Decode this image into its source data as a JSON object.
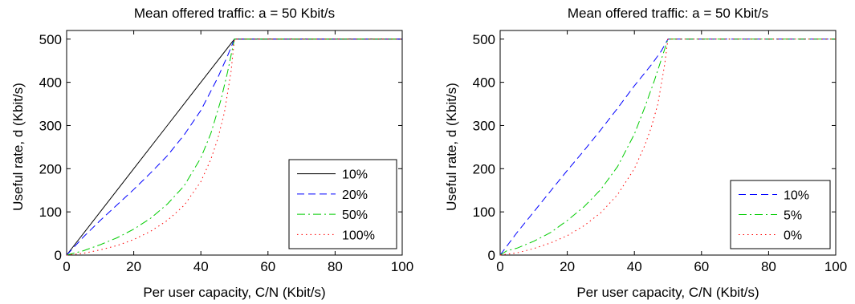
{
  "chart_data": [
    {
      "type": "line",
      "title": "Mean offered traffic: a = 50 Kbit/s",
      "xlabel": "Per user capacity, C/N (Kbit/s)",
      "ylabel": "Useful rate, d (Kbit/s)",
      "xlim": [
        0,
        100
      ],
      "ylim": [
        0,
        520
      ],
      "xticks": [
        0,
        20,
        40,
        60,
        80,
        100
      ],
      "yticks": [
        0,
        100,
        200,
        300,
        400,
        500
      ],
      "grid": false,
      "legend_position": "bottom-right",
      "series": [
        {
          "name": "10%",
          "color": "#000000",
          "dash": "solid",
          "x": [
            0,
            10,
            20,
            30,
            40,
            50,
            60,
            70,
            80,
            90,
            100
          ],
          "y": [
            0,
            100,
            200,
            300,
            400,
            500,
            500,
            500,
            500,
            500,
            500
          ]
        },
        {
          "name": "20%",
          "color": "#0000ff",
          "dash": "dashed",
          "x": [
            0,
            5,
            10,
            15,
            20,
            25,
            30,
            35,
            40,
            45,
            48,
            50,
            60,
            70,
            80,
            90,
            100
          ],
          "y": [
            0,
            42,
            80,
            116,
            152,
            190,
            230,
            278,
            335,
            410,
            462,
            500,
            500,
            500,
            500,
            500,
            500
          ]
        },
        {
          "name": "50%",
          "color": "#00cc00",
          "dash": "dashdot",
          "x": [
            0,
            5,
            10,
            15,
            20,
            25,
            30,
            35,
            40,
            43,
            46,
            48,
            50,
            60,
            70,
            80,
            90,
            100
          ],
          "y": [
            0,
            10,
            24,
            40,
            60,
            85,
            118,
            160,
            225,
            282,
            360,
            425,
            500,
            500,
            500,
            500,
            500,
            500
          ]
        },
        {
          "name": "100%",
          "color": "#ff0000",
          "dash": "dotted",
          "x": [
            0,
            5,
            10,
            15,
            20,
            25,
            30,
            35,
            40,
            43,
            45,
            47,
            49,
            50,
            60,
            70,
            80,
            90,
            100
          ],
          "y": [
            0,
            4,
            12,
            22,
            36,
            55,
            80,
            115,
            170,
            222,
            268,
            330,
            425,
            500,
            500,
            500,
            500,
            500,
            500
          ]
        }
      ]
    },
    {
      "type": "line",
      "title": "Mean offered traffic: a = 50 Kbit/s",
      "xlabel": "Per user capacity, C/N (Kbit/s)",
      "ylabel": "Useful rate, d (Kbit/s)",
      "xlim": [
        0,
        100
      ],
      "ylim": [
        0,
        520
      ],
      "xticks": [
        0,
        20,
        40,
        60,
        80,
        100
      ],
      "yticks": [
        0,
        100,
        200,
        300,
        400,
        500
      ],
      "grid": false,
      "legend_position": "bottom-right",
      "series": [
        {
          "name": "10%",
          "color": "#0000ff",
          "dash": "dashed",
          "x": [
            0,
            5,
            10,
            15,
            20,
            25,
            30,
            35,
            40,
            45,
            48,
            50,
            60,
            70,
            80,
            90,
            100
          ],
          "y": [
            0,
            52,
            100,
            148,
            196,
            242,
            290,
            340,
            392,
            440,
            472,
            500,
            500,
            500,
            500,
            500,
            500
          ]
        },
        {
          "name": "5%",
          "color": "#00cc00",
          "dash": "dashdot",
          "x": [
            0,
            2,
            5,
            10,
            15,
            20,
            25,
            30,
            35,
            40,
            43,
            46,
            48,
            50,
            60,
            70,
            80,
            90,
            100
          ],
          "y": [
            0,
            10,
            16,
            32,
            52,
            80,
            112,
            152,
            205,
            280,
            340,
            405,
            452,
            500,
            500,
            500,
            500,
            500,
            500
          ]
        },
        {
          "name": "0%",
          "color": "#ff0000",
          "dash": "dotted",
          "x": [
            0,
            5,
            10,
            15,
            20,
            25,
            30,
            35,
            40,
            43,
            45,
            47,
            49,
            50,
            60,
            70,
            80,
            90,
            100
          ],
          "y": [
            0,
            5,
            15,
            28,
            45,
            68,
            98,
            140,
            200,
            252,
            295,
            350,
            440,
            500,
            500,
            500,
            500,
            500,
            500
          ]
        }
      ]
    }
  ]
}
